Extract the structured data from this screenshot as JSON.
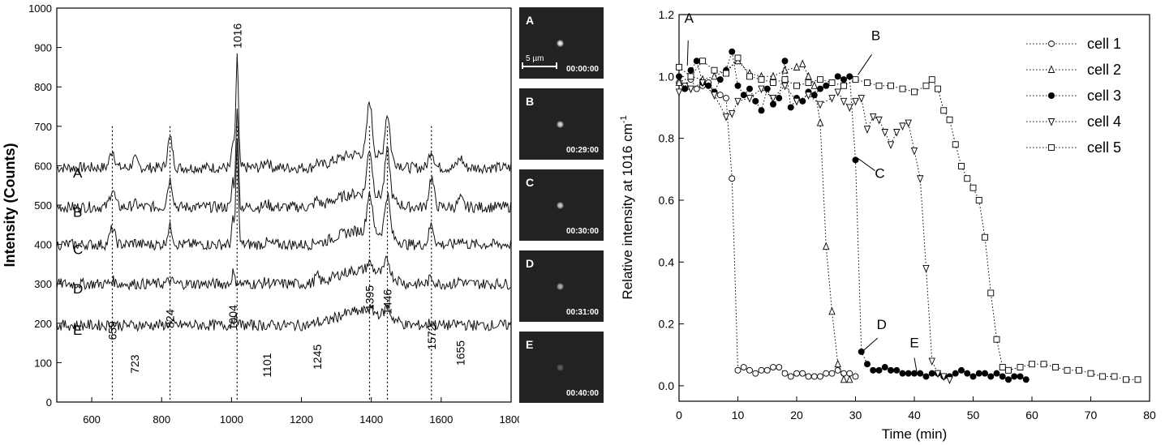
{
  "chart_data": [
    {
      "type": "line",
      "ylabel": "Intensity (Counts)",
      "xlabel": "",
      "xlim": [
        500,
        1800
      ],
      "ylim": [
        0,
        1000
      ],
      "xticks": [
        600,
        800,
        1000,
        1200,
        1400,
        1600,
        1800
      ],
      "yticks": [
        0,
        100,
        200,
        300,
        400,
        500,
        600,
        700,
        800,
        900,
        1000
      ],
      "series": [
        {
          "name": "A",
          "baseline": 595
        },
        {
          "name": "B",
          "baseline": 495
        },
        {
          "name": "C",
          "baseline": 400
        },
        {
          "name": "D",
          "baseline": 300
        },
        {
          "name": "E",
          "baseline": 195
        }
      ],
      "peaks": [
        {
          "x": 659,
          "label": "659",
          "height": 145
        },
        {
          "x": 723,
          "label": "723",
          "height": 60
        },
        {
          "x": 824,
          "label": "824",
          "height": 175
        },
        {
          "x": 1004,
          "label": "1004",
          "height": 170
        },
        {
          "x": 1016,
          "label": "1016",
          "height": 885
        },
        {
          "x": 1101,
          "label": "1101",
          "height": 50
        },
        {
          "x": 1245,
          "label": "1245",
          "height": 70
        },
        {
          "x": 1395,
          "label": "1395",
          "height": 220
        },
        {
          "x": 1446,
          "label": "1446",
          "height": 210
        },
        {
          "x": 1572,
          "label": "1572",
          "height": 120
        },
        {
          "x": 1655,
          "label": "1655",
          "height": 80
        }
      ],
      "dotted_lines_x": [
        659,
        824,
        1016,
        1395,
        1446,
        1572
      ]
    },
    {
      "type": "scatter",
      "xlabel": "Time (min)",
      "ylabel": "Relative intensity at 1016 cm",
      "ylabel_sup": "-1",
      "xlim": [
        0,
        80
      ],
      "ylim": [
        -0.05,
        1.2
      ],
      "xticks": [
        0,
        10,
        20,
        30,
        40,
        50,
        60,
        70,
        80
      ],
      "yticks": [
        0.0,
        0.2,
        0.4,
        0.6,
        0.8,
        1.0,
        1.2
      ],
      "legend_position": "top-right",
      "series": [
        {
          "name": "cell 1",
          "marker": "circle-open",
          "x": [
            0,
            1,
            2,
            3,
            4,
            5,
            6,
            7,
            8,
            9,
            10,
            11,
            12,
            13,
            14,
            15,
            16,
            17,
            18,
            19,
            20,
            21,
            22,
            23,
            24,
            25,
            26,
            27,
            28,
            29,
            30
          ],
          "y": [
            0.98,
            0.97,
            0.99,
            0.96,
            0.97,
            0.98,
            0.95,
            0.94,
            0.93,
            0.67,
            0.05,
            0.06,
            0.05,
            0.04,
            0.05,
            0.05,
            0.06,
            0.06,
            0.04,
            0.03,
            0.04,
            0.04,
            0.03,
            0.03,
            0.03,
            0.04,
            0.04,
            0.05,
            0.04,
            0.04,
            0.03
          ]
        },
        {
          "name": "cell 2",
          "marker": "triangle-up-open",
          "x": [
            0,
            2,
            4,
            6,
            8,
            10,
            12,
            14,
            16,
            18,
            20,
            21,
            22,
            23,
            24,
            25,
            26,
            27,
            28,
            29
          ],
          "y": [
            0.98,
            1.0,
            0.99,
            1.0,
            1.02,
            1.05,
            1.01,
            1.0,
            1.0,
            1.02,
            1.03,
            1.04,
            1.0,
            0.97,
            0.85,
            0.45,
            0.24,
            0.07,
            0.02,
            0.02
          ]
        },
        {
          "name": "cell 3",
          "marker": "circle-filled",
          "x": [
            0,
            1,
            2,
            3,
            4,
            5,
            6,
            7,
            8,
            9,
            10,
            11,
            12,
            13,
            14,
            15,
            16,
            17,
            18,
            19,
            20,
            21,
            22,
            23,
            24,
            25,
            26,
            27,
            28,
            29,
            30,
            31,
            32,
            33,
            34,
            35,
            36,
            37,
            38,
            39,
            40,
            41,
            42,
            43,
            44,
            45,
            46,
            47,
            48,
            49,
            50,
            51,
            52,
            53,
            54,
            55,
            56,
            57,
            58,
            59
          ],
          "y": [
            1.0,
            0.96,
            1.02,
            1.05,
            0.98,
            0.97,
            0.95,
            0.99,
            1.02,
            1.08,
            0.97,
            0.94,
            0.96,
            0.92,
            0.89,
            0.96,
            0.91,
            0.93,
            1.05,
            0.9,
            0.93,
            0.92,
            0.95,
            0.94,
            0.96,
            0.97,
            0.98,
            1.0,
            0.99,
            1.0,
            0.73,
            0.11,
            0.07,
            0.05,
            0.05,
            0.06,
            0.05,
            0.05,
            0.04,
            0.04,
            0.04,
            0.04,
            0.03,
            0.04,
            0.04,
            0.03,
            0.03,
            0.04,
            0.05,
            0.04,
            0.03,
            0.04,
            0.04,
            0.03,
            0.04,
            0.03,
            0.02,
            0.03,
            0.03,
            0.02
          ]
        },
        {
          "name": "cell 4",
          "marker": "triangle-down-open",
          "x": [
            0,
            2,
            4,
            6,
            8,
            9,
            10,
            12,
            14,
            16,
            18,
            20,
            22,
            24,
            26,
            27,
            28,
            29,
            30,
            31,
            32,
            33,
            34,
            35,
            36,
            37,
            38,
            39,
            40,
            41,
            42,
            43,
            44,
            45,
            46
          ],
          "y": [
            0.95,
            0.96,
            0.98,
            0.94,
            0.87,
            0.88,
            0.92,
            0.93,
            0.96,
            0.93,
            0.97,
            0.92,
            0.94,
            0.91,
            0.93,
            0.95,
            0.92,
            0.9,
            0.92,
            0.93,
            0.83,
            0.87,
            0.86,
            0.82,
            0.78,
            0.82,
            0.84,
            0.85,
            0.76,
            0.67,
            0.38,
            0.08,
            0.04,
            0.03,
            0.02
          ]
        },
        {
          "name": "cell 5",
          "marker": "square-open",
          "x": [
            0,
            2,
            4,
            6,
            8,
            10,
            12,
            14,
            16,
            18,
            20,
            22,
            24,
            26,
            28,
            30,
            32,
            34,
            36,
            38,
            40,
            42,
            43,
            44,
            45,
            46,
            47,
            48,
            49,
            50,
            51,
            52,
            53,
            54,
            55,
            56,
            58,
            60,
            62,
            64,
            66,
            68,
            70,
            72,
            74,
            76,
            78
          ],
          "y": [
            1.03,
            1.0,
            1.05,
            1.02,
            1.01,
            1.06,
            1.0,
            0.99,
            0.98,
            0.99,
            0.97,
            0.98,
            0.99,
            0.98,
            0.97,
            0.99,
            0.98,
            0.97,
            0.97,
            0.96,
            0.95,
            0.97,
            0.99,
            0.96,
            0.89,
            0.86,
            0.78,
            0.71,
            0.67,
            0.64,
            0.6,
            0.48,
            0.3,
            0.15,
            0.06,
            0.05,
            0.06,
            0.07,
            0.07,
            0.06,
            0.05,
            0.05,
            0.04,
            0.03,
            0.03,
            0.02,
            0.02
          ]
        }
      ],
      "annotations": [
        {
          "label": "A",
          "x": 1,
          "y": 1.03
        },
        {
          "label": "B",
          "x": 30,
          "y": 1.0
        },
        {
          "label": "C",
          "x": 30,
          "y": 0.73
        },
        {
          "label": "D",
          "x": 31,
          "y": 0.11
        },
        {
          "label": "E",
          "x": 40,
          "y": 0.04
        }
      ]
    }
  ],
  "panels": [
    {
      "label": "A",
      "time": "00:00:00",
      "scalebar": "5 µm",
      "brightness": 1.0
    },
    {
      "label": "B",
      "time": "00:29:00",
      "scalebar": "",
      "brightness": 0.9
    },
    {
      "label": "C",
      "time": "00:30:00",
      "scalebar": "",
      "brightness": 0.85
    },
    {
      "label": "D",
      "time": "00:31:00",
      "scalebar": "",
      "brightness": 0.7
    },
    {
      "label": "E",
      "time": "00:40:00",
      "scalebar": "",
      "brightness": 0.3
    }
  ]
}
